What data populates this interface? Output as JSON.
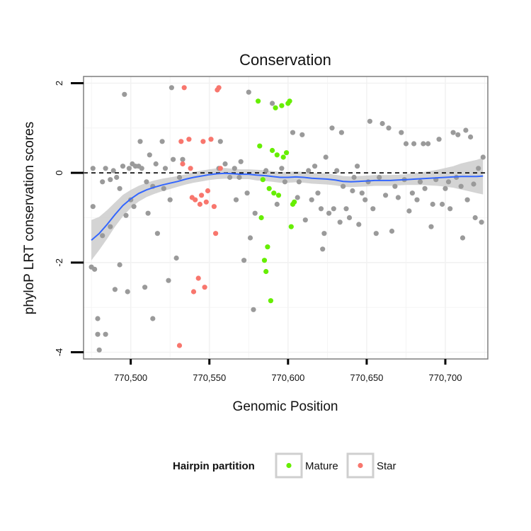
{
  "chart_data": {
    "type": "scatter",
    "title": "Conservation",
    "xlabel": "Genomic Position",
    "ylabel": "phyloP LRT conservation scores",
    "xlim": [
      770470,
      770727
    ],
    "ylim": [
      -4.15,
      2.15
    ],
    "x_ticks": [
      770500,
      770550,
      770600,
      770650,
      770700
    ],
    "x_tick_labels": [
      "770,500",
      "770,550",
      "770,600",
      "770,650",
      "770,700"
    ],
    "y_ticks": [
      -4,
      -2,
      0,
      2
    ],
    "y_tick_labels": [
      "-4",
      "-2",
      "0",
      "2"
    ],
    "grid": true,
    "reference_line": {
      "y": 0,
      "style": "dashed",
      "color": "#000000"
    },
    "legend": {
      "title": "Hairpin partition",
      "placement": "bottom",
      "entries": [
        {
          "label": "Mature",
          "color": "#66ee00"
        },
        {
          "label": "Star",
          "color": "#f8766d"
        }
      ]
    },
    "colors": {
      "other": "#9a9a9a",
      "mature": "#66ee00",
      "star": "#f8766d",
      "smooth": "#3366ff",
      "band": "#cccccc"
    },
    "series": [
      {
        "key": "other",
        "points": [
          [
            770475,
            -2.1
          ],
          [
            770477,
            -2.15
          ],
          [
            770476,
            0.1
          ],
          [
            770476,
            -0.75
          ],
          [
            770479,
            -3.25
          ],
          [
            770479,
            -3.6
          ],
          [
            770480,
            -3.95
          ],
          [
            770482,
            -0.2
          ],
          [
            770482,
            -1.4
          ],
          [
            770484,
            -3.6
          ],
          [
            770484,
            0.1
          ],
          [
            770487,
            -0.15
          ],
          [
            770487,
            -1.2
          ],
          [
            770489,
            0.05
          ],
          [
            770490,
            -2.6
          ],
          [
            770491,
            -0.1
          ],
          [
            770493,
            -2.05
          ],
          [
            770493,
            -0.35
          ],
          [
            770495,
            0.15
          ],
          [
            770496,
            1.75
          ],
          [
            770497,
            -0.95
          ],
          [
            770498,
            -2.65
          ],
          [
            770499,
            0.1
          ],
          [
            770500,
            -0.6
          ],
          [
            770501,
            0.2
          ],
          [
            770502,
            -0.75
          ],
          [
            770503,
            0.15
          ],
          [
            770505,
            0.15
          ],
          [
            770506,
            0.7
          ],
          [
            770507,
            0.1
          ],
          [
            770509,
            -2.55
          ],
          [
            770510,
            -0.2
          ],
          [
            770511,
            -0.9
          ],
          [
            770512,
            0.4
          ],
          [
            770514,
            -3.25
          ],
          [
            770514,
            -0.3
          ],
          [
            770516,
            0.2
          ],
          [
            770517,
            -1.35
          ],
          [
            770520,
            0.7
          ],
          [
            770521,
            -0.35
          ],
          [
            770522,
            0.1
          ],
          [
            770524,
            -2.4
          ],
          [
            770525,
            -0.6
          ],
          [
            770526,
            1.9
          ],
          [
            770527,
            0.3
          ],
          [
            770529,
            -1.9
          ],
          [
            770531,
            -0.1
          ],
          [
            770533,
            0.3
          ],
          [
            770556,
            0.1
          ],
          [
            770557,
            0.7
          ],
          [
            770560,
            0.2
          ],
          [
            770563,
            -0.1
          ],
          [
            770566,
            0.1
          ],
          [
            770567,
            -0.6
          ],
          [
            770569,
            -0.1
          ],
          [
            770570,
            0.25
          ],
          [
            770572,
            -1.95
          ],
          [
            770574,
            -0.45
          ],
          [
            770575,
            1.8
          ],
          [
            770576,
            -1.45
          ],
          [
            770578,
            -3.05
          ],
          [
            770579,
            -0.9
          ],
          [
            770586,
            0.05
          ],
          [
            770590,
            1.55
          ],
          [
            770593,
            -0.7
          ],
          [
            770596,
            0.1
          ],
          [
            770598,
            -0.2
          ],
          [
            770603,
            0.9
          ],
          [
            770606,
            -0.55
          ],
          [
            770607,
            -0.2
          ],
          [
            770609,
            0.85
          ],
          [
            770611,
            -1.05
          ],
          [
            770613,
            0.05
          ],
          [
            770615,
            -0.6
          ],
          [
            770617,
            0.15
          ],
          [
            770619,
            -0.45
          ],
          [
            770621,
            -0.8
          ],
          [
            770622,
            -1.7
          ],
          [
            770623,
            -1.35
          ],
          [
            770624,
            0.35
          ],
          [
            770626,
            -0.9
          ],
          [
            770628,
            1.0
          ],
          [
            770629,
            -0.8
          ],
          [
            770631,
            0.05
          ],
          [
            770633,
            -1.1
          ],
          [
            770634,
            0.9
          ],
          [
            770635,
            -0.3
          ],
          [
            770637,
            -0.8
          ],
          [
            770639,
            -1.0
          ],
          [
            770641,
            -0.4
          ],
          [
            770642,
            -0.1
          ],
          [
            770644,
            0.15
          ],
          [
            770645,
            -1.15
          ],
          [
            770647,
            -0.45
          ],
          [
            770649,
            -0.6
          ],
          [
            770651,
            -0.2
          ],
          [
            770652,
            1.15
          ],
          [
            770654,
            -0.8
          ],
          [
            770656,
            -1.35
          ],
          [
            770658,
            -0.1
          ],
          [
            770660,
            1.1
          ],
          [
            770662,
            -0.5
          ],
          [
            770664,
            1.0
          ],
          [
            770666,
            -1.3
          ],
          [
            770668,
            -0.3
          ],
          [
            770670,
            -0.55
          ],
          [
            770672,
            0.9
          ],
          [
            770674,
            -0.15
          ],
          [
            770675,
            0.65
          ],
          [
            770677,
            -0.85
          ],
          [
            770679,
            -0.45
          ],
          [
            770680,
            0.65
          ],
          [
            770682,
            -0.6
          ],
          [
            770684,
            -0.2
          ],
          [
            770686,
            0.65
          ],
          [
            770687,
            -0.35
          ],
          [
            770689,
            0.65
          ],
          [
            770691,
            -1.2
          ],
          [
            770692,
            -0.7
          ],
          [
            770694,
            -0.15
          ],
          [
            770696,
            0.75
          ],
          [
            770698,
            -0.7
          ],
          [
            770700,
            -0.35
          ],
          [
            770702,
            -0.2
          ],
          [
            770703,
            -0.8
          ],
          [
            770705,
            0.9
          ],
          [
            770707,
            -0.1
          ],
          [
            770708,
            0.85
          ],
          [
            770710,
            -0.3
          ],
          [
            770711,
            -1.45
          ],
          [
            770713,
            0.95
          ],
          [
            770714,
            -0.6
          ],
          [
            770716,
            0.8
          ],
          [
            770718,
            -0.25
          ],
          [
            770719,
            -1.0
          ],
          [
            770721,
            0.1
          ],
          [
            770723,
            -1.1
          ],
          [
            770724,
            0.35
          ]
        ]
      },
      {
        "key": "mature",
        "name": "Mature",
        "points": [
          [
            770581,
            1.6
          ],
          [
            770582,
            0.6
          ],
          [
            770583,
            -1.0
          ],
          [
            770584,
            -0.15
          ],
          [
            770585,
            -1.95
          ],
          [
            770586,
            -2.2
          ],
          [
            770587,
            -1.65
          ],
          [
            770588,
            -0.35
          ],
          [
            770589,
            -2.85
          ],
          [
            770590,
            0.5
          ],
          [
            770591,
            -0.45
          ],
          [
            770592,
            1.45
          ],
          [
            770593,
            0.4
          ],
          [
            770594,
            -0.5
          ],
          [
            770596,
            1.5
          ],
          [
            770597,
            0.35
          ],
          [
            770599,
            0.45
          ],
          [
            770600,
            1.55
          ],
          [
            770601,
            1.6
          ],
          [
            770602,
            -1.2
          ],
          [
            770603,
            -0.7
          ],
          [
            770604,
            -0.65
          ]
        ]
      },
      {
        "key": "star",
        "name": "Star",
        "points": [
          [
            770531,
            -3.85
          ],
          [
            770532,
            0.7
          ],
          [
            770533,
            0.2
          ],
          [
            770534,
            1.9
          ],
          [
            770537,
            0.75
          ],
          [
            770538,
            0.1
          ],
          [
            770539,
            -0.55
          ],
          [
            770540,
            -2.65
          ],
          [
            770541,
            -0.6
          ],
          [
            770543,
            -2.35
          ],
          [
            770544,
            -0.7
          ],
          [
            770545,
            -0.5
          ],
          [
            770546,
            0.7
          ],
          [
            770547,
            -2.55
          ],
          [
            770548,
            -0.65
          ],
          [
            770549,
            -0.4
          ],
          [
            770551,
            0.75
          ],
          [
            770553,
            -0.75
          ],
          [
            770554,
            -1.35
          ],
          [
            770555,
            1.85
          ],
          [
            770556,
            1.9
          ],
          [
            770557,
            0.1
          ]
        ]
      }
    ],
    "smooth": [
      [
        770475,
        -1.5
      ],
      [
        770480,
        -1.35
      ],
      [
        770485,
        -1.15
      ],
      [
        770490,
        -0.93
      ],
      [
        770495,
        -0.73
      ],
      [
        770500,
        -0.58
      ],
      [
        770505,
        -0.46
      ],
      [
        770510,
        -0.38
      ],
      [
        770515,
        -0.32
      ],
      [
        770520,
        -0.27
      ],
      [
        770525,
        -0.23
      ],
      [
        770530,
        -0.19
      ],
      [
        770535,
        -0.14
      ],
      [
        770540,
        -0.1
      ],
      [
        770545,
        -0.07
      ],
      [
        770550,
        -0.04
      ],
      [
        770555,
        -0.02
      ],
      [
        770560,
        -0.01
      ],
      [
        770565,
        -0.02
      ],
      [
        770570,
        -0.03
      ],
      [
        770575,
        -0.03
      ],
      [
        770580,
        -0.05
      ],
      [
        770585,
        -0.06
      ],
      [
        770590,
        -0.08
      ],
      [
        770595,
        -0.1
      ],
      [
        770600,
        -0.1
      ],
      [
        770605,
        -0.09
      ],
      [
        770610,
        -0.1
      ],
      [
        770615,
        -0.12
      ],
      [
        770620,
        -0.13
      ],
      [
        770625,
        -0.14
      ],
      [
        770630,
        -0.16
      ],
      [
        770635,
        -0.19
      ],
      [
        770640,
        -0.2
      ],
      [
        770645,
        -0.19
      ],
      [
        770650,
        -0.18
      ],
      [
        770655,
        -0.17
      ],
      [
        770660,
        -0.17
      ],
      [
        770665,
        -0.17
      ],
      [
        770670,
        -0.16
      ],
      [
        770675,
        -0.15
      ],
      [
        770680,
        -0.14
      ],
      [
        770685,
        -0.13
      ],
      [
        770690,
        -0.12
      ],
      [
        770695,
        -0.11
      ],
      [
        770700,
        -0.1
      ],
      [
        770705,
        -0.09
      ],
      [
        770710,
        -0.08
      ],
      [
        770715,
        -0.08
      ],
      [
        770720,
        -0.08
      ],
      [
        770724,
        -0.07
      ]
    ],
    "smooth_band": [
      [
        770475,
        -1.95,
        -1.05
      ],
      [
        770480,
        -1.72,
        -0.98
      ],
      [
        770485,
        -1.47,
        -0.83
      ],
      [
        770490,
        -1.2,
        -0.66
      ],
      [
        770495,
        -0.97,
        -0.49
      ],
      [
        770500,
        -0.78,
        -0.38
      ],
      [
        770505,
        -0.64,
        -0.29
      ],
      [
        770510,
        -0.54,
        -0.22
      ],
      [
        770515,
        -0.47,
        -0.17
      ],
      [
        770520,
        -0.41,
        -0.13
      ],
      [
        770525,
        -0.36,
        -0.1
      ],
      [
        770530,
        -0.31,
        -0.07
      ],
      [
        770535,
        -0.26,
        -0.03
      ],
      [
        770540,
        -0.22,
        0.02
      ],
      [
        770545,
        -0.19,
        0.05
      ],
      [
        770550,
        -0.16,
        0.08
      ],
      [
        770555,
        -0.14,
        0.1
      ],
      [
        770560,
        -0.13,
        0.11
      ],
      [
        770565,
        -0.13,
        0.09
      ],
      [
        770570,
        -0.14,
        0.08
      ],
      [
        770575,
        -0.14,
        0.08
      ],
      [
        770580,
        -0.17,
        0.07
      ],
      [
        770585,
        -0.18,
        0.06
      ],
      [
        770590,
        -0.2,
        0.04
      ],
      [
        770595,
        -0.22,
        0.02
      ],
      [
        770600,
        -0.22,
        0.02
      ],
      [
        770605,
        -0.21,
        0.03
      ],
      [
        770610,
        -0.22,
        0.02
      ],
      [
        770615,
        -0.24,
        0.0
      ],
      [
        770620,
        -0.25,
        -0.01
      ],
      [
        770625,
        -0.26,
        -0.02
      ],
      [
        770630,
        -0.28,
        -0.04
      ],
      [
        770635,
        -0.31,
        -0.07
      ],
      [
        770640,
        -0.32,
        -0.08
      ],
      [
        770645,
        -0.31,
        -0.07
      ],
      [
        770650,
        -0.3,
        -0.06
      ],
      [
        770655,
        -0.29,
        -0.05
      ],
      [
        770660,
        -0.29,
        -0.05
      ],
      [
        770665,
        -0.29,
        -0.05
      ],
      [
        770670,
        -0.28,
        -0.04
      ],
      [
        770675,
        -0.27,
        -0.03
      ],
      [
        770680,
        -0.27,
        -0.01
      ],
      [
        770685,
        -0.27,
        0.01
      ],
      [
        770690,
        -0.28,
        0.04
      ],
      [
        770695,
        -0.29,
        0.07
      ],
      [
        770700,
        -0.31,
        0.11
      ],
      [
        770705,
        -0.33,
        0.15
      ],
      [
        770710,
        -0.37,
        0.21
      ],
      [
        770715,
        -0.41,
        0.25
      ],
      [
        770720,
        -0.45,
        0.29
      ],
      [
        770724,
        -0.48,
        0.34
      ]
    ]
  }
}
